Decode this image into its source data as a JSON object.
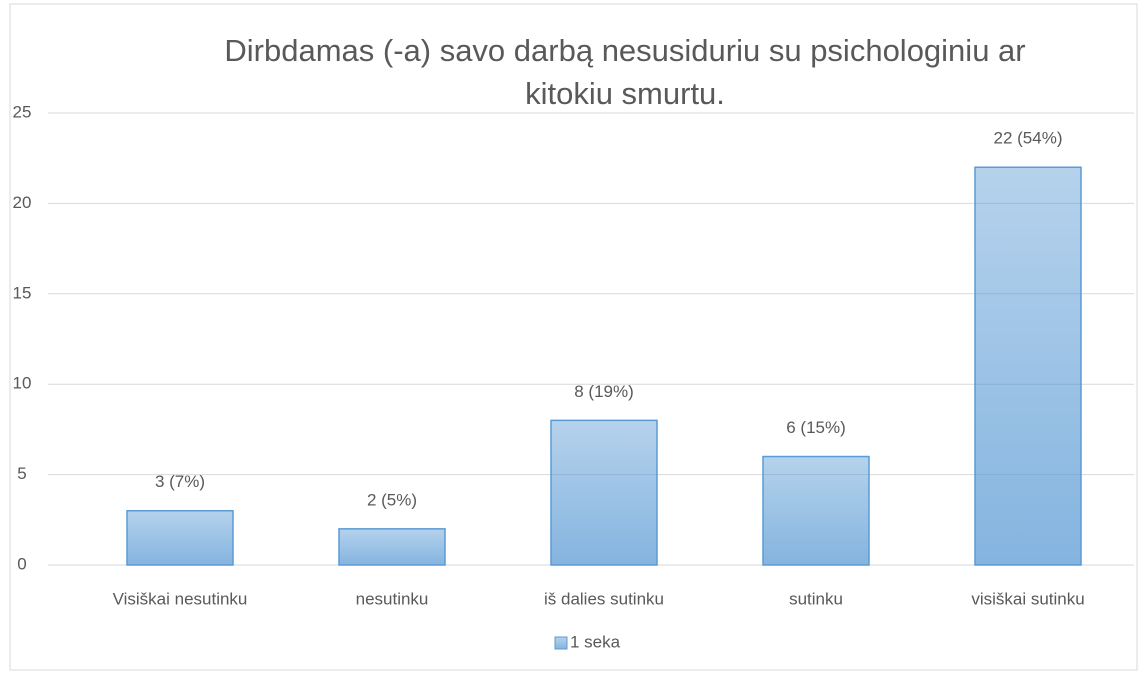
{
  "chart_data": {
    "type": "bar",
    "title": [
      "Dirbdamas (-a) savo darbą nesusiduriu su psichologiniu ar",
      "kitokiu smurtu."
    ],
    "categories": [
      "Visiškai nesutinku",
      "nesutinku",
      "iš dalies sutinku",
      "sutinku",
      "visiškai sutinku"
    ],
    "series": [
      {
        "name": "1 seka",
        "color": "#5b9bd5",
        "values": [
          3,
          2,
          8,
          6,
          22
        ],
        "value_labels": [
          "3 (7%)",
          "2 (5%)",
          "8 (19%)",
          "6 (15%)",
          "22 (54%)"
        ]
      }
    ],
    "ylim": [
      0,
      25
    ],
    "yticks": [
      0,
      5,
      10,
      15,
      20,
      25
    ],
    "grid": true,
    "legend": "bottom"
  }
}
